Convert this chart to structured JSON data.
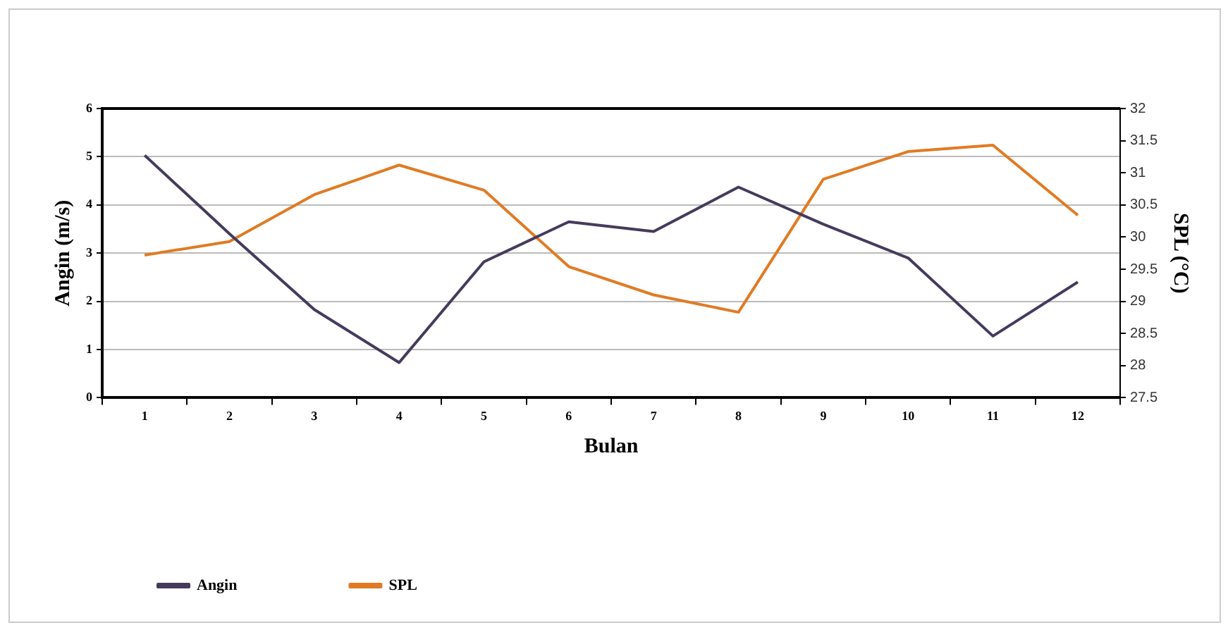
{
  "chart_data": {
    "type": "line",
    "xlabel": "Bulan",
    "ylabel": "Angin (m/s)",
    "y2label": "SPL (°C)",
    "categories": [
      "1",
      "2",
      "3",
      "4",
      "5",
      "6",
      "7",
      "8",
      "9",
      "10",
      "11",
      "12"
    ],
    "series": [
      {
        "name": "Angin",
        "color": "#463a5c",
        "values": [
          5.03,
          3.4,
          1.83,
          0.73,
          2.82,
          3.65,
          3.45,
          4.37,
          3.6,
          2.9,
          1.28,
          2.4
        ]
      },
      {
        "name": "SPL",
        "color": "#e07b24",
        "axis": "y2",
        "values": [
          29.72,
          29.93,
          30.66,
          31.12,
          30.73,
          29.54,
          29.1,
          28.83,
          30.9,
          31.33,
          31.43,
          30.34
        ]
      }
    ],
    "ylim": [
      0,
      6
    ],
    "yticks": [
      0,
      1,
      2,
      3,
      4,
      5,
      6
    ],
    "y2lim": [
      27.5,
      32
    ],
    "y2ticks": [
      27.5,
      28,
      28.5,
      29,
      29.5,
      30,
      30.5,
      31,
      31.5,
      32
    ],
    "grid": "y",
    "legend": "bottom left",
    "marker": "none",
    "line_style": "solid"
  }
}
